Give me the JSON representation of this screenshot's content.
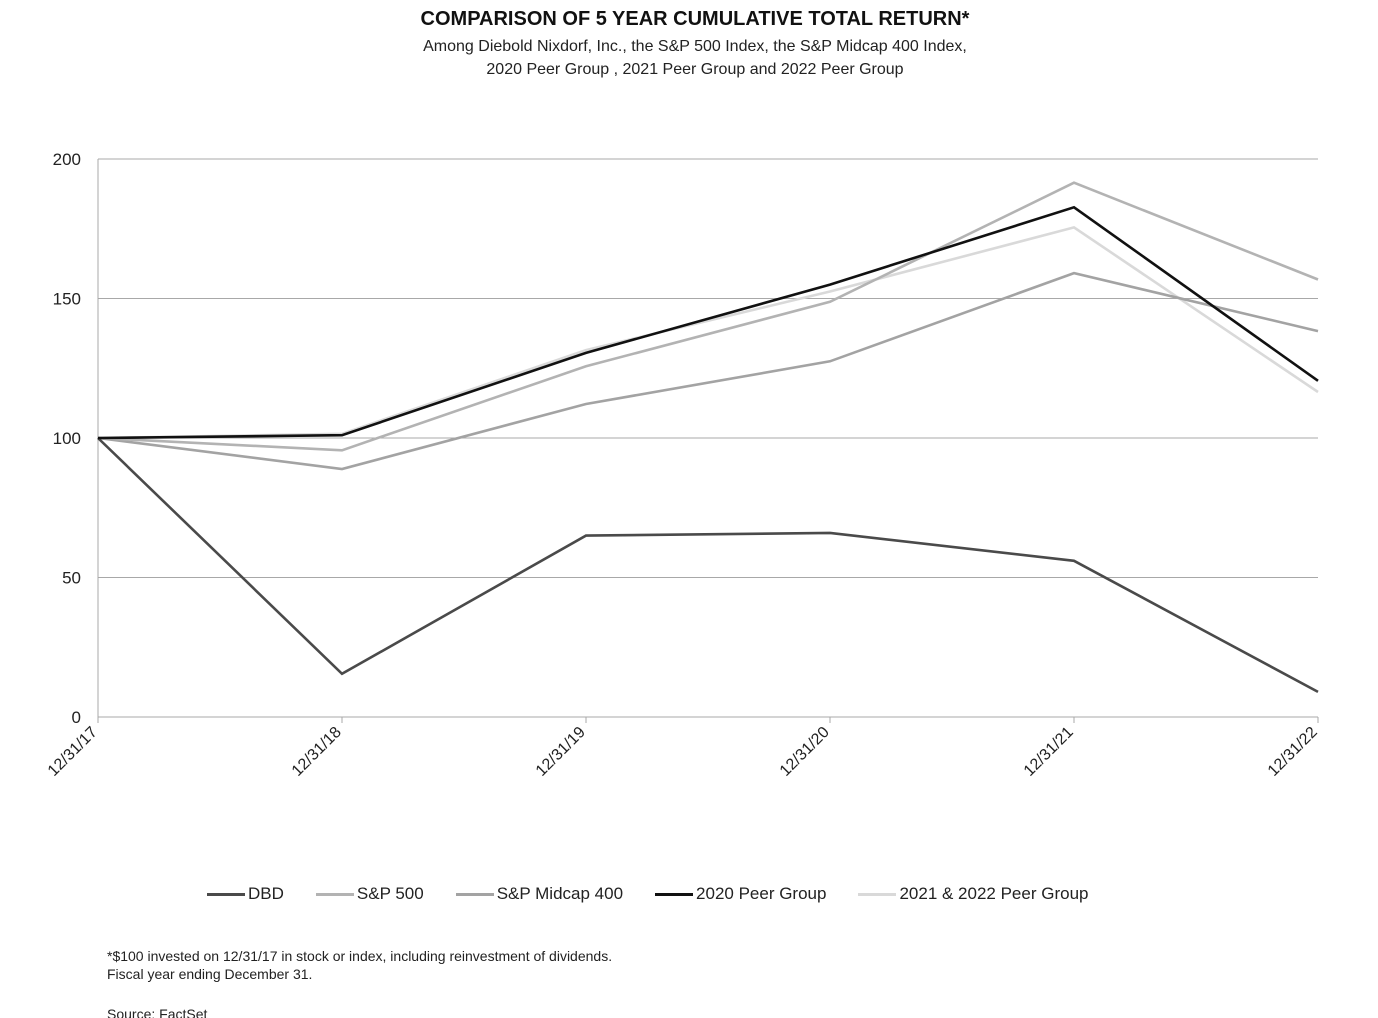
{
  "chart_data": {
    "type": "line",
    "title": "COMPARISON OF 5 YEAR CUMULATIVE TOTAL RETURN*",
    "subtitle_lines": [
      "Among Diebold Nixdorf, Inc., the S&P 500 Index, the S&P Midcap 400 Index,",
      "2020 Peer Group , 2021 Peer Group and 2022 Peer Group"
    ],
    "x": [
      "12/31/17",
      "12/31/18",
      "12/31/19",
      "12/31/20",
      "12/31/21",
      "12/31/22"
    ],
    "ylim": [
      0,
      200
    ],
    "yticks": [
      "0",
      "50",
      "100",
      "150",
      "200"
    ],
    "grid": "horizontal",
    "legend_position": "bottom",
    "series": [
      {
        "name": "DBD",
        "color": "#4a4a4a",
        "values": [
          100,
          15.5,
          65,
          66,
          56,
          9
        ]
      },
      {
        "name": "S&P 500",
        "color": "#b3b3b3",
        "values": [
          100,
          95.6,
          125.7,
          148.8,
          191.5,
          156.8
        ]
      },
      {
        "name": "S&P Midcap 400",
        "color": "#a3a3a3",
        "values": [
          100,
          88.9,
          112.2,
          127.5,
          159.1,
          138.3
        ]
      },
      {
        "name": "2020 Peer Group",
        "color": "#111111",
        "values": [
          100,
          101,
          130.5,
          155,
          182.7,
          120.5
        ]
      },
      {
        "name": "2021 & 2022 Peer Group",
        "color": "#d9d9d9",
        "values": [
          100,
          101.5,
          131.5,
          152.5,
          175.5,
          116.5
        ]
      }
    ],
    "footnotes": [
      "*$100 invested on 12/31/17 in stock or index, including reinvestment of dividends.",
      "Fiscal year ending December 31.",
      "Source: FactSet"
    ]
  }
}
